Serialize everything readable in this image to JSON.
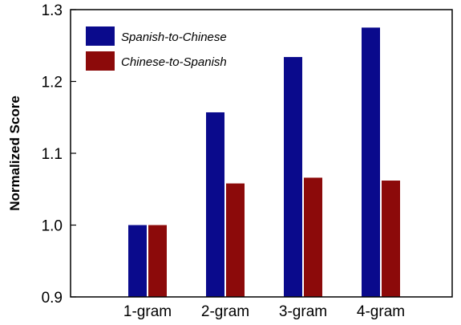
{
  "chart_data": {
    "type": "bar",
    "title": "",
    "xlabel": "",
    "ylabel": "Normalized Score",
    "ylim": [
      0.9,
      1.3
    ],
    "yticks": [
      "0.9",
      "1.0",
      "1.1",
      "1.2",
      "1.3"
    ],
    "categories": [
      "1-gram",
      "2-gram",
      "3-gram",
      "4-gram"
    ],
    "series": [
      {
        "name": "Spanish-to-Chinese",
        "color": "#0a0a8c",
        "values": [
          1.0,
          1.157,
          1.234,
          1.275
        ]
      },
      {
        "name": "Chinese-to-Spanish",
        "color": "#8c0a0a",
        "values": [
          1.0,
          1.058,
          1.066,
          1.062
        ]
      }
    ],
    "legend_position": "top-left",
    "grid": false
  }
}
